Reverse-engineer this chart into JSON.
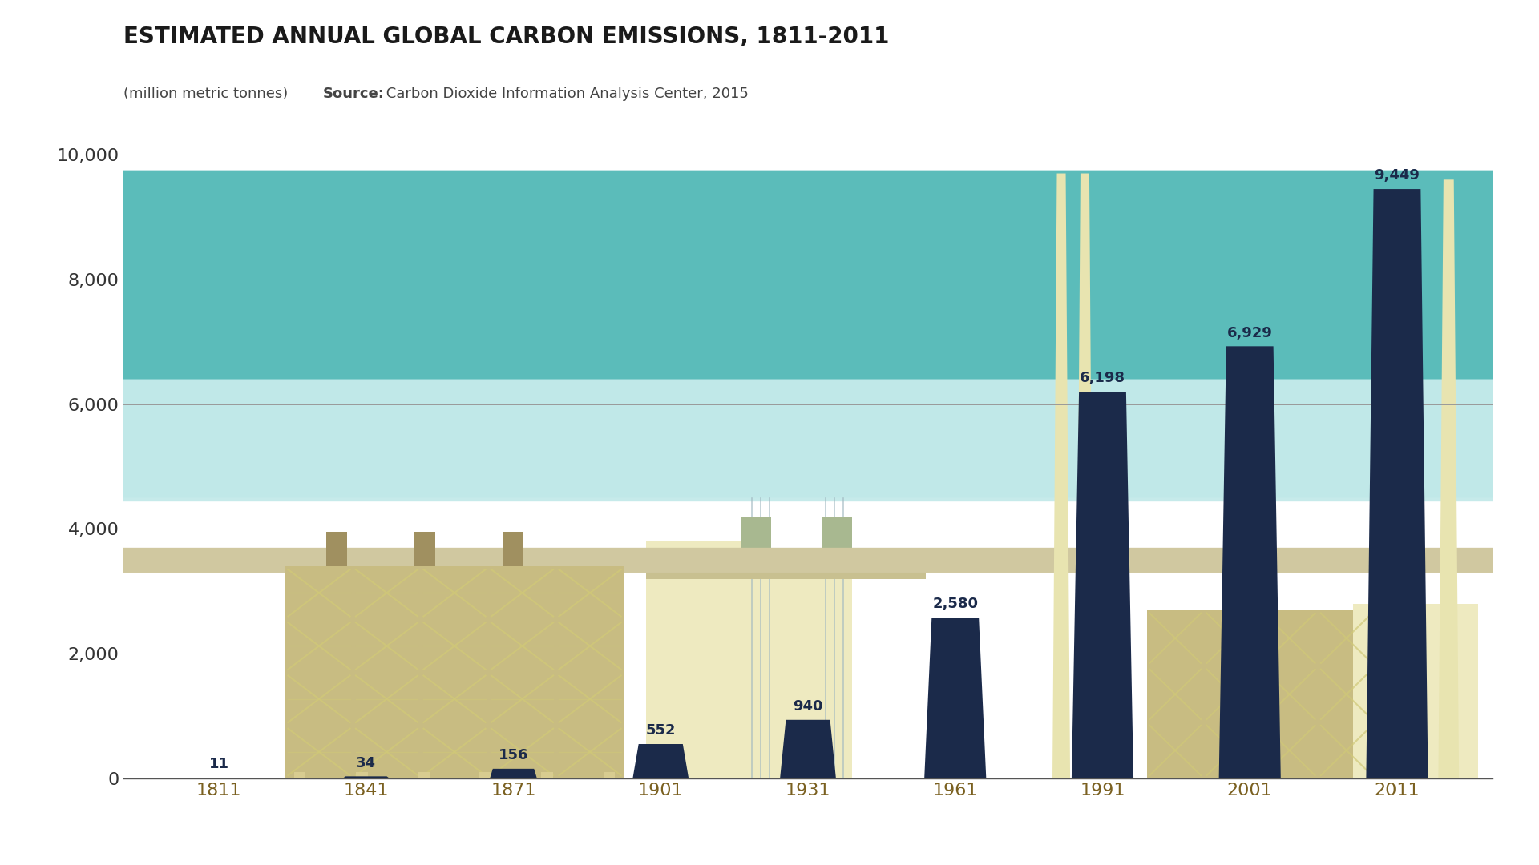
{
  "title": "ESTIMATED ANNUAL GLOBAL CARBON EMISSIONS, 1811-2011",
  "subtitle_plain": "(million metric tonnes) ",
  "subtitle_bold": "Source:",
  "subtitle_rest": " Carbon Dioxide Information Analysis Center, 2015",
  "years": [
    1811,
    1841,
    1871,
    1901,
    1931,
    1961,
    1991,
    2001,
    2011
  ],
  "values": [
    11,
    34,
    156,
    552,
    940,
    2580,
    6198,
    6929,
    9449
  ],
  "bar_color": "#1b2a4a",
  "background_color": "#ffffff",
  "title_color": "#1a1a1a",
  "ytick_color": "#333333",
  "xtick_color": "#7a6020",
  "bar_label_color": "#1b2a4a",
  "ylim": [
    0,
    10400
  ],
  "yticks": [
    0,
    2000,
    4000,
    6000,
    8000,
    10000
  ],
  "factory_tan": "#c8bc82",
  "factory_cream": "#eeeac0",
  "factory_dark_tan": "#a09060",
  "factory_khaki": "#b8b080",
  "smoke_dark": "#5bbcba",
  "smoke_light": "#c0e8e8",
  "chimney_yellow": "#e8e4b0",
  "pipe_color": "#b0c0a0"
}
